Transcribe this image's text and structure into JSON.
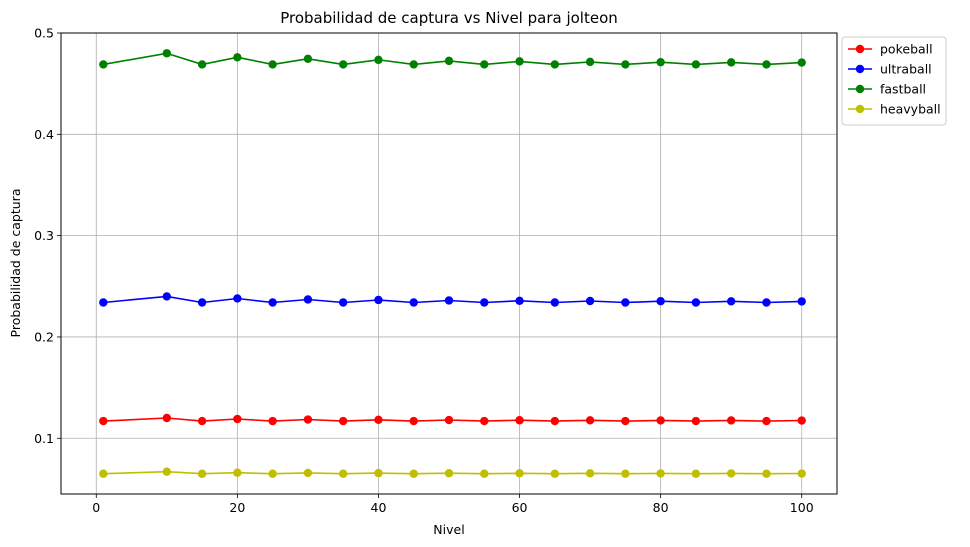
{
  "chart_data": {
    "type": "line",
    "title": "Probabilidad de captura vs Nivel para jolteon",
    "xlabel": "Nivel",
    "ylabel": "Probabilidad de captura",
    "xlim": [
      -5,
      105
    ],
    "ylim": [
      0.045,
      0.5
    ],
    "xticks": [
      0,
      20,
      40,
      60,
      80,
      100
    ],
    "yticks": [
      0.1,
      0.2,
      0.3,
      0.4,
      0.5
    ],
    "xtick_labels": [
      "0",
      "20",
      "40",
      "60",
      "80",
      "100"
    ],
    "ytick_labels": [
      "0.1",
      "0.2",
      "0.3",
      "0.4",
      "0.5"
    ],
    "grid": true,
    "legend_position": "outside-top-right",
    "x": [
      1,
      10,
      15,
      20,
      25,
      30,
      35,
      40,
      45,
      50,
      55,
      60,
      65,
      70,
      75,
      80,
      85,
      90,
      95,
      100
    ],
    "series": [
      {
        "name": "pokeball",
        "color": "#ff0000",
        "values": [
          0.117,
          0.12,
          0.117,
          0.119,
          0.117,
          0.1185,
          0.117,
          0.1182,
          0.117,
          0.118,
          0.117,
          0.1178,
          0.117,
          0.1177,
          0.117,
          0.1176,
          0.117,
          0.1176,
          0.117,
          0.1175
        ]
      },
      {
        "name": "ultraball",
        "color": "#0000ff",
        "values": [
          0.234,
          0.24,
          0.234,
          0.238,
          0.234,
          0.237,
          0.234,
          0.2365,
          0.234,
          0.236,
          0.234,
          0.2357,
          0.234,
          0.2355,
          0.234,
          0.2353,
          0.234,
          0.2352,
          0.234,
          0.2351
        ]
      },
      {
        "name": "fastball",
        "color": "#008000",
        "values": [
          0.469,
          0.48,
          0.469,
          0.476,
          0.469,
          0.4745,
          0.469,
          0.4735,
          0.469,
          0.4725,
          0.469,
          0.472,
          0.469,
          0.4715,
          0.469,
          0.4712,
          0.469,
          0.471,
          0.469,
          0.4708
        ]
      },
      {
        "name": "heavyball",
        "color": "#bfbf00",
        "values": [
          0.065,
          0.067,
          0.065,
          0.066,
          0.065,
          0.0658,
          0.065,
          0.0656,
          0.065,
          0.0655,
          0.065,
          0.0654,
          0.065,
          0.0654,
          0.065,
          0.0653,
          0.065,
          0.0653,
          0.065,
          0.0652
        ]
      }
    ]
  }
}
